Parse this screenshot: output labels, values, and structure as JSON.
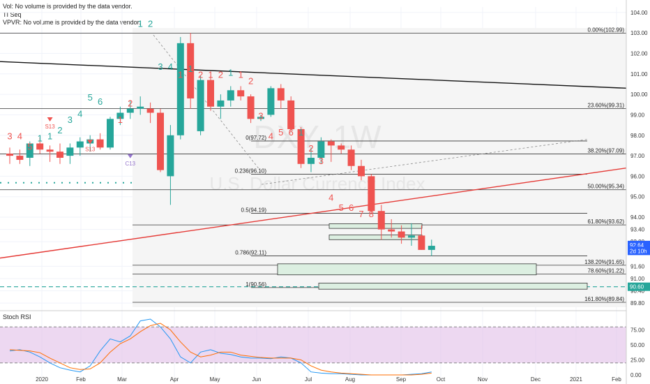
{
  "info": {
    "vol": "Vol: No volume is provided by the data vendor.",
    "tiseq": "TI Seq",
    "vpvr": "VPVR: No volume is provided by the data vendor."
  },
  "watermark": {
    "symbol": "DXY, 1W",
    "name": "U.S. Dollar Currency Index"
  },
  "colors": {
    "up": "#26a69a",
    "down": "#ef5350",
    "upSeq": "#26a69a",
    "downSeq": "#ef5350",
    "rsiK": "#2196f3",
    "rsiD": "#ff6d00",
    "rsiBand": "#e1bee7"
  },
  "chart_data": {
    "type": "candlestick",
    "y_axis": {
      "min": 89.6,
      "max": 104.2,
      "ticks": [
        104.0,
        103.0,
        102.0,
        101.0,
        100.0,
        99.0,
        98.0,
        97.0,
        96.0,
        95.0,
        94.0,
        93.4,
        92.8,
        91.6,
        91.0,
        90.4,
        89.8
      ],
      "tick_labels": [
        "104.00",
        "103.00",
        "102.00",
        "101.00",
        "100.00",
        "99.00",
        "98.00",
        "97.00",
        "96.00",
        "95.00",
        "94.00",
        "93.40",
        "92.80",
        "91.60",
        "91.00",
        "90.40",
        "89.80"
      ]
    },
    "x_axis": {
      "labels": [
        "2020",
        "Feb",
        "Mar",
        "Apr",
        "May",
        "Jun",
        "Jul",
        "Aug",
        "Sep",
        "Oct",
        "Nov",
        "Dec",
        "2021",
        "Feb"
      ]
    },
    "price_labels": [
      {
        "text": "92.64",
        "value": 92.64
      },
      {
        "text": "2d 10h",
        "value": 92.35
      },
      {
        "text": "90.60",
        "value": 90.6
      }
    ],
    "candles": [
      {
        "o": 97.1,
        "h": 97.4,
        "l": 96.6,
        "c": 97.0
      },
      {
        "o": 97.0,
        "h": 97.3,
        "l": 96.6,
        "c": 96.8
      },
      {
        "o": 96.9,
        "h": 97.7,
        "l": 96.5,
        "c": 97.6
      },
      {
        "o": 97.6,
        "h": 97.9,
        "l": 97.1,
        "c": 97.3
      },
      {
        "o": 97.3,
        "h": 97.5,
        "l": 96.7,
        "c": 97.2
      },
      {
        "o": 97.2,
        "h": 97.6,
        "l": 96.6,
        "c": 96.9
      },
      {
        "o": 97.0,
        "h": 97.6,
        "l": 96.6,
        "c": 97.4
      },
      {
        "o": 97.4,
        "h": 97.9,
        "l": 97.0,
        "c": 97.7
      },
      {
        "o": 97.6,
        "h": 98.0,
        "l": 97.2,
        "c": 97.8
      },
      {
        "o": 97.8,
        "h": 98.1,
        "l": 97.3,
        "c": 97.4
      },
      {
        "o": 97.4,
        "h": 98.9,
        "l": 97.3,
        "c": 98.8
      },
      {
        "o": 98.8,
        "h": 99.4,
        "l": 98.5,
        "c": 99.1
      },
      {
        "o": 99.1,
        "h": 99.7,
        "l": 98.8,
        "c": 99.3
      },
      {
        "o": 99.3,
        "h": 99.9,
        "l": 99.0,
        "c": 99.4
      },
      {
        "o": 99.3,
        "h": 99.6,
        "l": 98.6,
        "c": 99.1
      },
      {
        "o": 99.1,
        "h": 99.3,
        "l": 96.2,
        "c": 96.3
      },
      {
        "o": 96.0,
        "h": 98.5,
        "l": 94.6,
        "c": 98.0
      },
      {
        "o": 98.0,
        "h": 102.8,
        "l": 97.8,
        "c": 102.5
      },
      {
        "o": 102.5,
        "h": 103.0,
        "l": 99.3,
        "c": 99.8
      },
      {
        "o": 98.2,
        "h": 100.9,
        "l": 98.0,
        "c": 100.7
      },
      {
        "o": 100.7,
        "h": 100.9,
        "l": 99.2,
        "c": 99.4
      },
      {
        "o": 99.4,
        "h": 100.0,
        "l": 98.8,
        "c": 99.7
      },
      {
        "o": 99.7,
        "h": 100.4,
        "l": 99.4,
        "c": 100.2
      },
      {
        "o": 100.2,
        "h": 100.4,
        "l": 99.7,
        "c": 99.9
      },
      {
        "o": 99.9,
        "h": 100.0,
        "l": 98.6,
        "c": 98.8
      },
      {
        "o": 98.8,
        "h": 99.0,
        "l": 98.7,
        "c": 98.9
      },
      {
        "o": 99.0,
        "h": 100.4,
        "l": 98.9,
        "c": 100.3
      },
      {
        "o": 100.3,
        "h": 100.5,
        "l": 99.3,
        "c": 99.7
      },
      {
        "o": 99.7,
        "h": 99.9,
        "l": 98.2,
        "c": 98.3
      },
      {
        "o": 98.3,
        "h": 98.4,
        "l": 96.4,
        "c": 96.6
      },
      {
        "o": 96.6,
        "h": 97.4,
        "l": 96.2,
        "c": 96.9
      },
      {
        "o": 96.9,
        "h": 97.9,
        "l": 96.6,
        "c": 97.7
      },
      {
        "o": 97.7,
        "h": 97.8,
        "l": 96.7,
        "c": 97.5
      },
      {
        "o": 97.5,
        "h": 97.6,
        "l": 97.1,
        "c": 97.3
      },
      {
        "o": 97.3,
        "h": 97.5,
        "l": 96.3,
        "c": 96.5
      },
      {
        "o": 96.5,
        "h": 96.8,
        "l": 95.8,
        "c": 96.0
      },
      {
        "o": 96.0,
        "h": 96.1,
        "l": 94.2,
        "c": 94.3
      },
      {
        "o": 94.3,
        "h": 94.6,
        "l": 92.9,
        "c": 93.4
      },
      {
        "o": 93.4,
        "h": 93.9,
        "l": 93.0,
        "c": 93.3
      },
      {
        "o": 93.3,
        "h": 93.6,
        "l": 92.7,
        "c": 93.0
      },
      {
        "o": 93.0,
        "h": 93.7,
        "l": 92.6,
        "c": 93.1
      },
      {
        "o": 93.1,
        "h": 93.6,
        "l": 92.4,
        "c": 92.4
      },
      {
        "o": 92.4,
        "h": 92.9,
        "l": 92.1,
        "c": 92.6
      }
    ],
    "fib_levels": [
      {
        "label": "0.00%(102.99)",
        "value": 102.99
      },
      {
        "label": "23.60%(99.31)",
        "value": 99.31
      },
      {
        "label": "38.20%(97.09)",
        "value": 97.09
      },
      {
        "label": "50.00%(95.34)",
        "value": 95.34
      },
      {
        "label": "61.80%(93.62)",
        "value": 93.62
      },
      {
        "label": "138.20%(91.65)",
        "value": 91.65
      },
      {
        "label": "78.60%(91.22)",
        "value": 91.22
      },
      {
        "label": "161.80%(89.84)",
        "value": 89.84
      }
    ],
    "fib_inner": [
      {
        "label": "0(97.72)",
        "value": 97.72
      },
      {
        "label": "0.236(96.10)",
        "value": 96.1
      },
      {
        "label": "0.5(94.19)",
        "value": 94.19
      },
      {
        "label": "0.786(92.11)",
        "value": 92.11
      },
      {
        "label": "1(90.56)",
        "value": 90.56
      }
    ],
    "sequential_counts": [
      {
        "text": "3",
        "i": 0,
        "side": "down",
        "p": 97.8
      },
      {
        "text": "4",
        "i": 1,
        "side": "down",
        "p": 97.8
      },
      {
        "text": "5",
        "i": 2,
        "side": "down",
        "p": 97.3
      },
      {
        "text": "1",
        "i": 3,
        "side": "up",
        "p": 97.7
      },
      {
        "text": "1",
        "i": 4,
        "side": "up",
        "p": 97.8
      },
      {
        "text": "2",
        "i": 5,
        "side": "up",
        "p": 98.1
      },
      {
        "text": "3",
        "i": 6,
        "side": "up",
        "p": 98.6
      },
      {
        "text": "4",
        "i": 7,
        "side": "up",
        "p": 98.9
      },
      {
        "text": "5",
        "i": 8,
        "side": "up",
        "p": 99.7
      },
      {
        "text": "6",
        "i": 9,
        "side": "up",
        "p": 99.5
      },
      {
        "text": "1",
        "i": 11,
        "side": "down",
        "p": 98.6
      },
      {
        "text": "2",
        "i": 12,
        "side": "down",
        "p": 99.4
      },
      {
        "text": "1",
        "i": 13,
        "side": "up",
        "p": 103.3
      },
      {
        "text": "2",
        "i": 14,
        "side": "up",
        "p": 103.3
      },
      {
        "text": "3",
        "i": 15,
        "side": "up",
        "p": 101.2
      },
      {
        "text": "4",
        "i": 16,
        "side": "up",
        "p": 101.2
      },
      {
        "text": "1",
        "i": 17,
        "side": "down",
        "p": 100.8
      },
      {
        "text": "1",
        "i": 18,
        "side": "up",
        "p": 101.1
      },
      {
        "text": "2",
        "i": 19,
        "side": "down",
        "p": 100.8
      },
      {
        "text": "1",
        "i": 20,
        "side": "down",
        "p": 100.8
      },
      {
        "text": "2",
        "i": 21,
        "side": "down",
        "p": 100.8
      },
      {
        "text": "1",
        "i": 22,
        "side": "up",
        "p": 100.9
      },
      {
        "text": "1",
        "i": 23,
        "side": "down",
        "p": 100.8
      },
      {
        "text": "2",
        "i": 24,
        "side": "down",
        "p": 100.5
      },
      {
        "text": "3",
        "i": 25,
        "side": "down",
        "p": 98.8
      },
      {
        "text": "4",
        "i": 26,
        "side": "down",
        "p": 97.8
      },
      {
        "text": "5",
        "i": 27,
        "side": "down",
        "p": 98.0
      },
      {
        "text": "6",
        "i": 28,
        "side": "down",
        "p": 98.0
      },
      {
        "text": "1",
        "i": 29,
        "side": "up",
        "p": 98.0
      },
      {
        "text": "2",
        "i": 30,
        "side": "down",
        "p": 97.2
      },
      {
        "text": "3",
        "i": 31,
        "side": "down",
        "p": 96.6
      },
      {
        "text": "4",
        "i": 32,
        "side": "down",
        "p": 94.8
      },
      {
        "text": "5",
        "i": 33,
        "side": "down",
        "p": 94.3
      },
      {
        "text": "6",
        "i": 34,
        "side": "down",
        "p": 94.3
      },
      {
        "text": "7",
        "i": 35,
        "side": "down",
        "p": 94.0
      },
      {
        "text": "8",
        "i": 36,
        "side": "down",
        "p": 94.0
      }
    ],
    "setup_markers": [
      {
        "text": "S13",
        "i": 4,
        "p": 98.4,
        "color": "#ef5350"
      },
      {
        "text": "S13",
        "i": 8,
        "p": 97.3,
        "color": "#ef5350"
      },
      {
        "text": "C13",
        "i": 12,
        "p": 96.6,
        "color": "#9575cd"
      }
    ],
    "rsi_axis": {
      "min": 0,
      "max": 100,
      "ticks": [
        75,
        50,
        25,
        0
      ],
      "tick_labels": [
        "75.00",
        "50.00",
        "25.00",
        "0.00"
      ],
      "title": "Stoch RSI"
    },
    "rsi_k": [
      40,
      42,
      38,
      30,
      20,
      12,
      8,
      5,
      15,
      40,
      60,
      55,
      65,
      90,
      93,
      80,
      60,
      30,
      20,
      38,
      42,
      36,
      34,
      30,
      28,
      28,
      27,
      30,
      28,
      20,
      5,
      3,
      2,
      2,
      1,
      0,
      0,
      0,
      0,
      0,
      1,
      2,
      5
    ],
    "rsi_d": [
      42,
      41,
      40,
      37,
      28,
      20,
      12,
      9,
      10,
      20,
      38,
      52,
      60,
      72,
      82,
      86,
      75,
      55,
      38,
      30,
      33,
      38,
      38,
      33,
      31,
      29,
      28,
      28,
      28,
      25,
      15,
      8,
      5,
      3,
      2,
      1,
      0,
      0,
      0,
      0,
      0,
      1,
      3
    ]
  }
}
